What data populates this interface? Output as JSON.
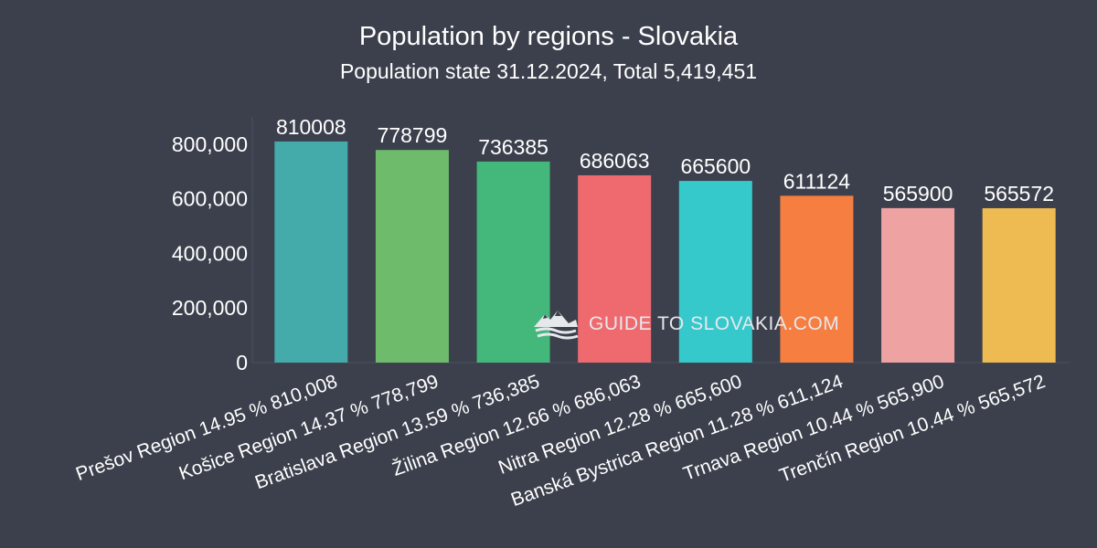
{
  "chart_data": {
    "type": "bar",
    "title": "Population by regions - Slovakia",
    "subtitle": "Population state 31.12.2024, Total 5,419,451",
    "xlabel": "",
    "ylabel": "",
    "ylim": [
      0,
      900000
    ],
    "yticks": [
      0,
      200000,
      400000,
      600000,
      800000
    ],
    "ytick_labels": [
      "0",
      "200,000",
      "400,000",
      "600,000",
      "800,000"
    ],
    "categories": [
      "Prešov Region  14.95 %  810,008",
      "Košice Region  14.37 %  778,799",
      "Bratislava Region  13.59 %  736,385",
      "Žilina Region  12.66 %  686,063",
      "Nitra Region  12.28 %  665,600",
      "Banská Bystrica Region  11.28 %  611,124",
      "Trnava Region  10.44 %  565,900",
      "Trenčín Region  10.44 %  565,572"
    ],
    "values": [
      810008,
      778799,
      736385,
      686063,
      665600,
      611124,
      565900,
      565572
    ],
    "value_labels": [
      "810008",
      "778799",
      "736385",
      "686063",
      "665600",
      "611124",
      "565900",
      "565572"
    ],
    "colors": [
      "#45aaaa",
      "#6dbb6b",
      "#44b77b",
      "#ef6a6e",
      "#36c9cb",
      "#f67e41",
      "#efa2a2",
      "#eeba52"
    ],
    "grid": false
  },
  "watermark": {
    "text": "GUIDE TO SLOVAKIA.COM",
    "icon": "mountain-logo-icon"
  }
}
